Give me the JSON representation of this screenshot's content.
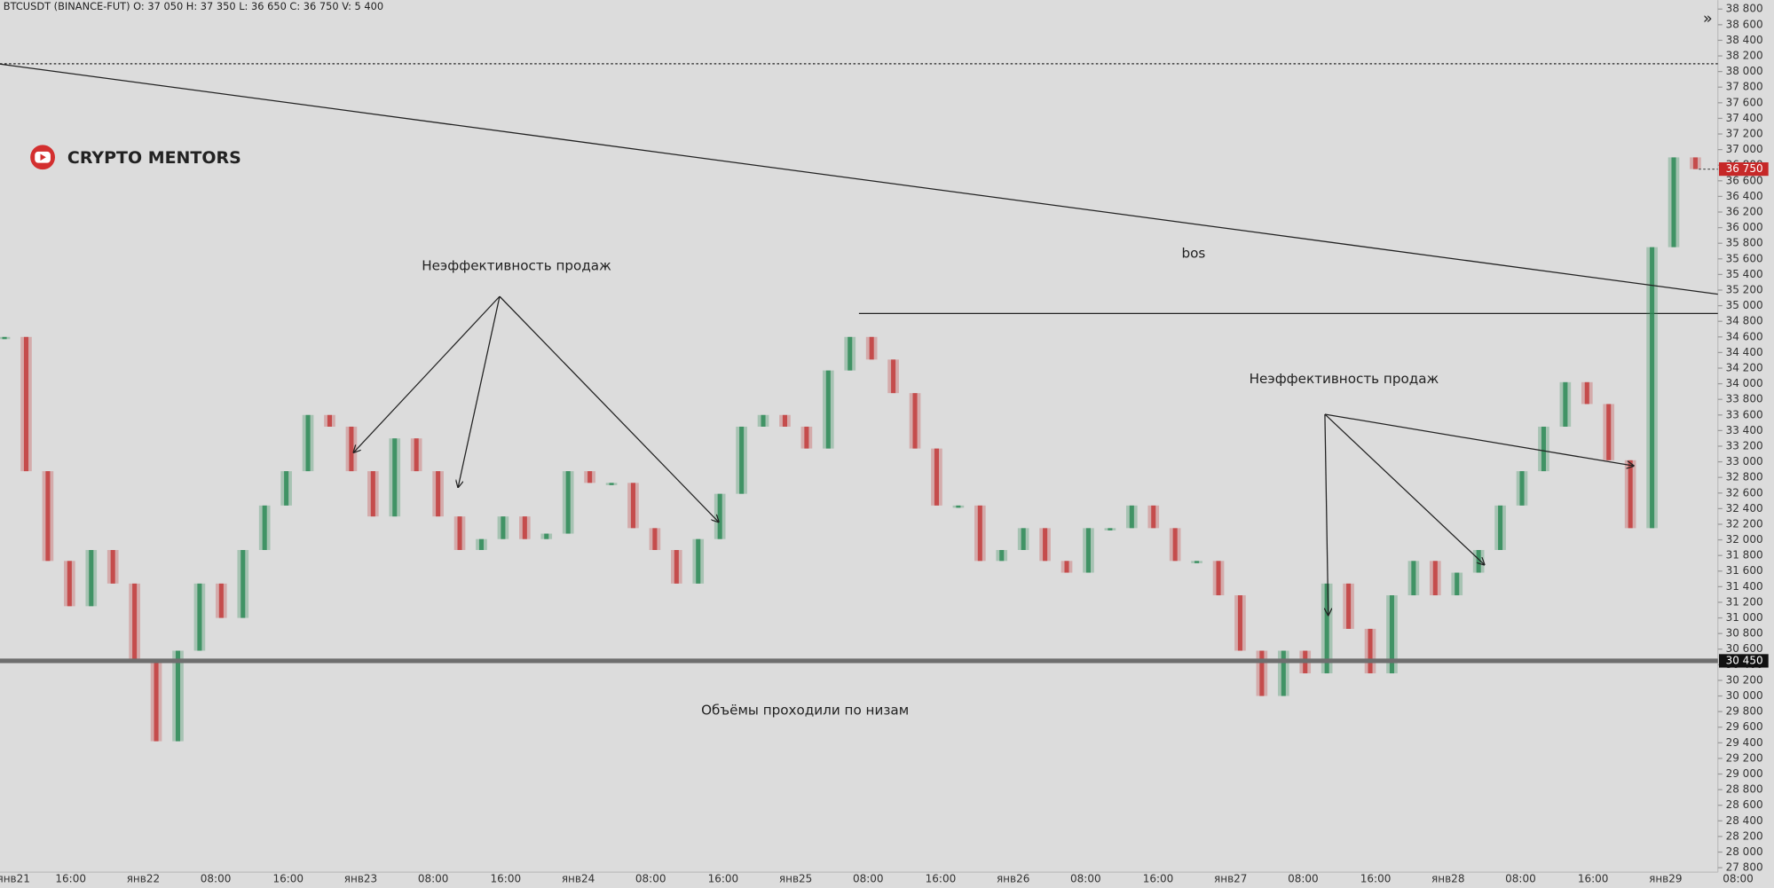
{
  "header": "BTCUSDT (BINANCE-FUT)  O: 37 050  H: 37 350  L: 36 650  C: 36 750  V: 5 400",
  "brand": "CRYPTO MENTORS",
  "chart_data": {
    "type": "candlestick",
    "up_color": "#2e8b57",
    "down_color": "#c23b3b",
    "values": [
      34600,
      32880,
      31730,
      31150,
      31870,
      31440,
      30430,
      29420,
      30580,
      31440,
      31000,
      31870,
      32440,
      32880,
      33600,
      33450,
      32880,
      32300,
      33300,
      32880,
      32300,
      31870,
      32010,
      32300,
      32010,
      32080,
      32880,
      32730,
      32730,
      32150,
      31870,
      31440,
      32010,
      32590,
      33450,
      33600,
      33450,
      33170,
      34170,
      34600,
      34310,
      33880,
      33170,
      32440,
      32440,
      31730,
      31870,
      32150,
      31730,
      31580,
      32150,
      32150,
      32440,
      32150,
      31730,
      31730,
      31290,
      30580,
      30000,
      30580,
      30290,
      31440,
      30860,
      30290,
      31290,
      31730,
      31290,
      31580,
      31870,
      32440,
      32880,
      33450,
      34020,
      33740,
      33020,
      32150,
      35750,
      36900,
      36750
    ],
    "ylim": [
      27800,
      38800
    ],
    "yticks": [
      {
        "value": 38800,
        "label": "38 800"
      },
      {
        "value": 38600,
        "label": "38 600"
      },
      {
        "value": 38400,
        "label": "38 400"
      },
      {
        "value": 38200,
        "label": "38 200"
      },
      {
        "value": 38000,
        "label": "38 000"
      },
      {
        "value": 37800,
        "label": "37 800"
      },
      {
        "value": 37600,
        "label": "37 600"
      },
      {
        "value": 37400,
        "label": "37 400"
      },
      {
        "value": 37200,
        "label": "37 200"
      },
      {
        "value": 37000,
        "label": "37 000"
      },
      {
        "value": 36800,
        "label": "36 800"
      },
      {
        "value": 36600,
        "label": "36 600"
      },
      {
        "value": 36400,
        "label": "36 400"
      },
      {
        "value": 36200,
        "label": "36 200"
      },
      {
        "value": 36000,
        "label": "36 000"
      },
      {
        "value": 35800,
        "label": "35 800"
      },
      {
        "value": 35600,
        "label": "35 600"
      },
      {
        "value": 35400,
        "label": "35 400"
      },
      {
        "value": 35200,
        "label": "35 200"
      },
      {
        "value": 35000,
        "label": "35 000"
      },
      {
        "value": 34800,
        "label": "34 800"
      },
      {
        "value": 34600,
        "label": "34 600"
      },
      {
        "value": 34400,
        "label": "34 400"
      },
      {
        "value": 34200,
        "label": "34 200"
      },
      {
        "value": 34000,
        "label": "34 000"
      },
      {
        "value": 33800,
        "label": "33 800"
      },
      {
        "value": 33600,
        "label": "33 600"
      },
      {
        "value": 33400,
        "label": "33 400"
      },
      {
        "value": 33200,
        "label": "33 200"
      },
      {
        "value": 33000,
        "label": "33 000"
      },
      {
        "value": 32800,
        "label": "32 800"
      },
      {
        "value": 32600,
        "label": "32 600"
      },
      {
        "value": 32400,
        "label": "32 400"
      },
      {
        "value": 32200,
        "label": "32 200"
      },
      {
        "value": 32000,
        "label": "32 000"
      },
      {
        "value": 31800,
        "label": "31 800"
      },
      {
        "value": 31600,
        "label": "31 600"
      },
      {
        "value": 31400,
        "label": "31 400"
      },
      {
        "value": 31200,
        "label": "31 200"
      },
      {
        "value": 31000,
        "label": "31 000"
      },
      {
        "value": 30800,
        "label": "30 800"
      },
      {
        "value": 30600,
        "label": "30 600"
      },
      {
        "value": 30400,
        "label": "30 400"
      },
      {
        "value": 30200,
        "label": "30 200"
      },
      {
        "value": 30000,
        "label": "30 000"
      },
      {
        "value": 29800,
        "label": "29 800"
      },
      {
        "value": 29600,
        "label": "29 600"
      },
      {
        "value": 29400,
        "label": "29 400"
      },
      {
        "value": 29200,
        "label": "29 200"
      },
      {
        "value": 29000,
        "label": "29 000"
      },
      {
        "value": 28800,
        "label": "28 800"
      },
      {
        "value": 28600,
        "label": "28 600"
      },
      {
        "value": 28400,
        "label": "28 400"
      },
      {
        "value": 28200,
        "label": "28 200"
      },
      {
        "value": 28000,
        "label": "28 000"
      },
      {
        "value": 27800,
        "label": "27 800"
      }
    ],
    "xticks": [
      "янв21",
      "16:00",
      "янв22",
      "08:00",
      "16:00",
      "янв23",
      "08:00",
      "16:00",
      "янв24",
      "08:00",
      "16:00",
      "янв25",
      "08:00",
      "16:00",
      "янв26",
      "08:00",
      "16:00",
      "янв27",
      "08:00",
      "16:00",
      "янв28",
      "08:00",
      "16:00",
      "янв29",
      "08:00"
    ],
    "levels": [
      38100,
      34900
    ],
    "price_labels": [
      {
        "value": 36750,
        "label": "36 750",
        "color": "#c62828"
      },
      {
        "value": 30450,
        "label": "30 450",
        "color": "#111111"
      }
    ],
    "annotations": [
      "Неэффективность продаж",
      "Неэффективность продаж",
      "bos",
      "Объёмы проходили по низам"
    ]
  }
}
